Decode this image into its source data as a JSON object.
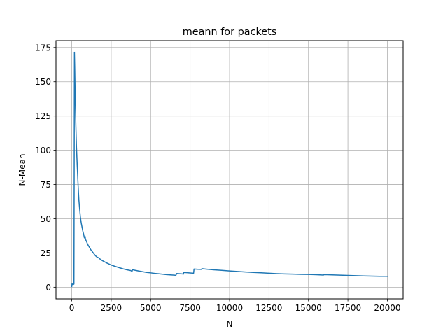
{
  "chart_data": {
    "type": "line",
    "title": "meann for packets",
    "xlabel": "N",
    "ylabel": "N-Mean",
    "xlim": [
      -1000,
      21000
    ],
    "ylim": [
      -8.5,
      180
    ],
    "xticks": [
      0,
      2500,
      5000,
      7500,
      10000,
      12500,
      15000,
      17500,
      20000
    ],
    "yticks": [
      0,
      25,
      50,
      75,
      100,
      125,
      150,
      175
    ],
    "grid": true,
    "legend": "none",
    "series": [
      {
        "color": "#1f77b4",
        "points": [
          [
            0,
            0.5
          ],
          [
            20,
            2.5
          ],
          [
            60,
            2.0
          ],
          [
            100,
            2.0
          ],
          [
            140,
            2.3
          ],
          [
            170,
            171.5
          ],
          [
            190,
            160
          ],
          [
            220,
            138
          ],
          [
            260,
            118
          ],
          [
            300,
            102
          ],
          [
            350,
            88
          ],
          [
            400,
            75
          ],
          [
            450,
            64
          ],
          [
            500,
            57
          ],
          [
            550,
            51
          ],
          [
            600,
            47
          ],
          [
            650,
            44
          ],
          [
            700,
            41
          ],
          [
            750,
            39
          ],
          [
            800,
            36
          ],
          [
            850,
            37
          ],
          [
            870,
            35
          ],
          [
            950,
            33
          ],
          [
            1000,
            31.5
          ],
          [
            1100,
            29.5
          ],
          [
            1200,
            27.5
          ],
          [
            1300,
            26
          ],
          [
            1400,
            24.5
          ],
          [
            1500,
            23
          ],
          [
            1600,
            22
          ],
          [
            1700,
            21.5
          ],
          [
            1800,
            20.5
          ],
          [
            1900,
            19.7
          ],
          [
            2000,
            19
          ],
          [
            2250,
            17.5
          ],
          [
            2500,
            16.2
          ],
          [
            2750,
            15.2
          ],
          [
            3000,
            14.3
          ],
          [
            3250,
            13.4
          ],
          [
            3500,
            12.7
          ],
          [
            3750,
            12.1
          ],
          [
            3820,
            11.5
          ],
          [
            3850,
            12.8
          ],
          [
            4000,
            12.4
          ],
          [
            4250,
            11.8
          ],
          [
            4500,
            11.3
          ],
          [
            4750,
            10.8
          ],
          [
            5000,
            10.5
          ],
          [
            5250,
            10.1
          ],
          [
            5500,
            9.8
          ],
          [
            5750,
            9.5
          ],
          [
            6000,
            9.2
          ],
          [
            6250,
            9.0
          ],
          [
            6500,
            8.8
          ],
          [
            6600,
            8.7
          ],
          [
            6650,
            10.0
          ],
          [
            7000,
            9.7
          ],
          [
            7080,
            9.6
          ],
          [
            7100,
            10.8
          ],
          [
            7500,
            10.4
          ],
          [
            7720,
            10.2
          ],
          [
            7750,
            13.3
          ],
          [
            8000,
            13.1
          ],
          [
            8200,
            13.0
          ],
          [
            8250,
            13.5
          ],
          [
            8500,
            13.2
          ],
          [
            9000,
            12.7
          ],
          [
            9500,
            12.3
          ],
          [
            10000,
            11.9
          ],
          [
            10500,
            11.5
          ],
          [
            11000,
            11.1
          ],
          [
            11500,
            10.8
          ],
          [
            12000,
            10.5
          ],
          [
            12500,
            10.2
          ],
          [
            13000,
            9.9
          ],
          [
            13500,
            9.7
          ],
          [
            14000,
            9.6
          ],
          [
            14500,
            9.4
          ],
          [
            15000,
            9.3
          ],
          [
            15500,
            9.1
          ],
          [
            15950,
            8.9
          ],
          [
            16000,
            9.2
          ],
          [
            16500,
            9.0
          ],
          [
            17000,
            8.8
          ],
          [
            17500,
            8.6
          ],
          [
            18000,
            8.4
          ],
          [
            18500,
            8.2
          ],
          [
            19000,
            8.1
          ],
          [
            19500,
            8.0
          ],
          [
            20000,
            8.0
          ]
        ]
      }
    ]
  }
}
